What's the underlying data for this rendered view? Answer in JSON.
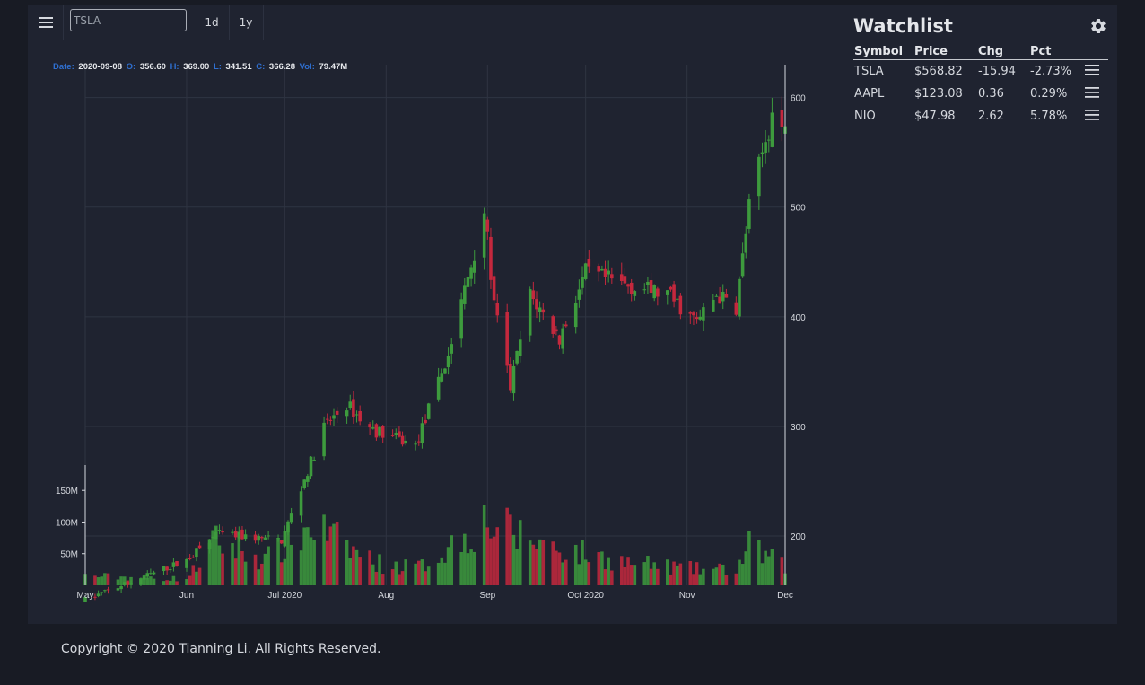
{
  "toolbar": {
    "menu_icon": "hamburger-menu-icon",
    "search_value": "",
    "search_placeholder": "TSLA",
    "interval_1d": "1d",
    "interval_1y": "1y"
  },
  "legend": {
    "date_label": "Date:",
    "date_value": "2020-09-08",
    "open_label": "O:",
    "open_value": "356.60",
    "high_label": "H:",
    "high_value": "369.00",
    "low_label": "L:",
    "low_value": "341.51",
    "close_label": "C:",
    "close_value": "366.28",
    "vol_label": "Vol:",
    "vol_value": "79.47M"
  },
  "colors": {
    "up": "#3d9b3d",
    "down": "#c4283d",
    "label_blue": "#2f6fd0",
    "grid": "#2f3442",
    "axis": "#d6d9df"
  },
  "chart_data": {
    "type": "candlestick",
    "symbol": "TSLA",
    "x_tick_labels": [
      "May",
      "Jun",
      "Jul 2020",
      "Aug",
      "Sep",
      "Oct 2020",
      "Nov",
      "Dec"
    ],
    "price_ticks": [
      200,
      300,
      400,
      500,
      600
    ],
    "price_tick_labels": [
      "200",
      "300",
      "400",
      "500",
      "600"
    ],
    "volume_ticks": [
      "50M",
      "100M",
      "150M"
    ],
    "price_range": [
      155,
      630
    ],
    "volume_range": [
      0,
      190
    ],
    "grid": true,
    "date_range": [
      "2020-05-01",
      "2020-12-01"
    ],
    "price_anchors": [
      [
        "2020-05-01",
        142
      ],
      [
        "2020-05-15",
        158
      ],
      [
        "2020-06-01",
        178
      ],
      [
        "2020-06-10",
        202
      ],
      [
        "2020-06-30",
        196
      ],
      [
        "2020-07-10",
        275
      ],
      [
        "2020-07-13",
        300
      ],
      [
        "2020-07-20",
        320
      ],
      [
        "2020-07-27",
        298
      ],
      [
        "2020-08-10",
        282
      ],
      [
        "2020-08-20",
        365
      ],
      [
        "2020-08-28",
        460
      ],
      [
        "2020-08-31",
        498
      ],
      [
        "2020-09-03",
        410
      ],
      [
        "2020-09-08",
        336
      ],
      [
        "2020-09-14",
        420
      ],
      [
        "2020-09-23",
        380
      ],
      [
        "2020-10-01",
        440
      ],
      [
        "2020-10-12",
        430
      ],
      [
        "2020-10-26",
        420
      ],
      [
        "2020-11-04",
        395
      ],
      [
        "2020-11-10",
        420
      ],
      [
        "2020-11-16",
        409
      ],
      [
        "2020-11-20",
        500
      ],
      [
        "2020-11-27",
        585
      ],
      [
        "2020-12-01",
        568
      ]
    ],
    "volume_anchors": [
      [
        "2020-05-01",
        15
      ],
      [
        "2020-06-01",
        10
      ],
      [
        "2020-06-10",
        70
      ],
      [
        "2020-06-25",
        40
      ],
      [
        "2020-07-06",
        80
      ],
      [
        "2020-07-10",
        95
      ],
      [
        "2020-07-20",
        60
      ],
      [
        "2020-08-01",
        30
      ],
      [
        "2020-08-12",
        30
      ],
      [
        "2020-08-20",
        60
      ],
      [
        "2020-08-31",
        100
      ],
      [
        "2020-09-10",
        80
      ],
      [
        "2020-09-25",
        55
      ],
      [
        "2020-10-15",
        35
      ],
      [
        "2020-11-05",
        25
      ],
      [
        "2020-11-16",
        25
      ],
      [
        "2020-11-20",
        60
      ],
      [
        "2020-12-01",
        30
      ]
    ]
  },
  "watchlist": {
    "title": "Watchlist",
    "settings_icon": "gear-icon",
    "columns": [
      "Symbol",
      "Price",
      "Chg",
      "Pct"
    ],
    "rows": [
      {
        "symbol": "TSLA",
        "price": "$568.82",
        "chg": "-15.94",
        "pct": "-2.73%",
        "direction": "down"
      },
      {
        "symbol": "AAPL",
        "price": "$123.08",
        "chg": "0.36",
        "pct": "0.29%",
        "direction": "up"
      },
      {
        "symbol": "NIO",
        "price": "$47.98",
        "chg": "2.62",
        "pct": "5.78%",
        "direction": "up"
      }
    ]
  },
  "footer": {
    "copyright": "Copyright © 2020 Tianning Li. All Rights Reserved."
  }
}
